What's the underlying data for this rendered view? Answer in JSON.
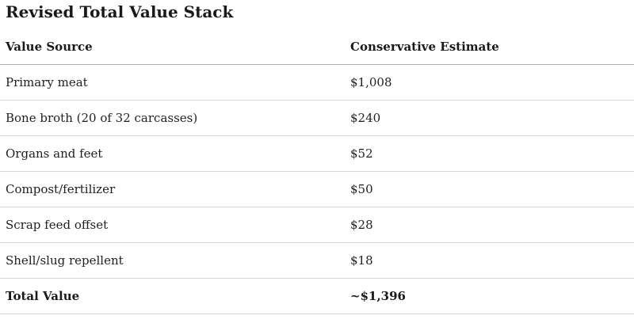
{
  "title": "Revised Total Value Stack",
  "table": {
    "headers": [
      "Value Source",
      "Conservative Estimate"
    ],
    "rows": [
      {
        "source": "Primary meat",
        "estimate": "$1,008"
      },
      {
        "source": "Bone broth (20 of 32 carcasses)",
        "estimate": "$240"
      },
      {
        "source": "Organs and feet",
        "estimate": "$52"
      },
      {
        "source": "Compost/fertilizer",
        "estimate": "$50"
      },
      {
        "source": "Scrap feed offset",
        "estimate": "$28"
      },
      {
        "source": "Shell/slug repellent",
        "estimate": "$18"
      }
    ],
    "total": {
      "source": "Total Value",
      "estimate": "~$1,396"
    }
  }
}
